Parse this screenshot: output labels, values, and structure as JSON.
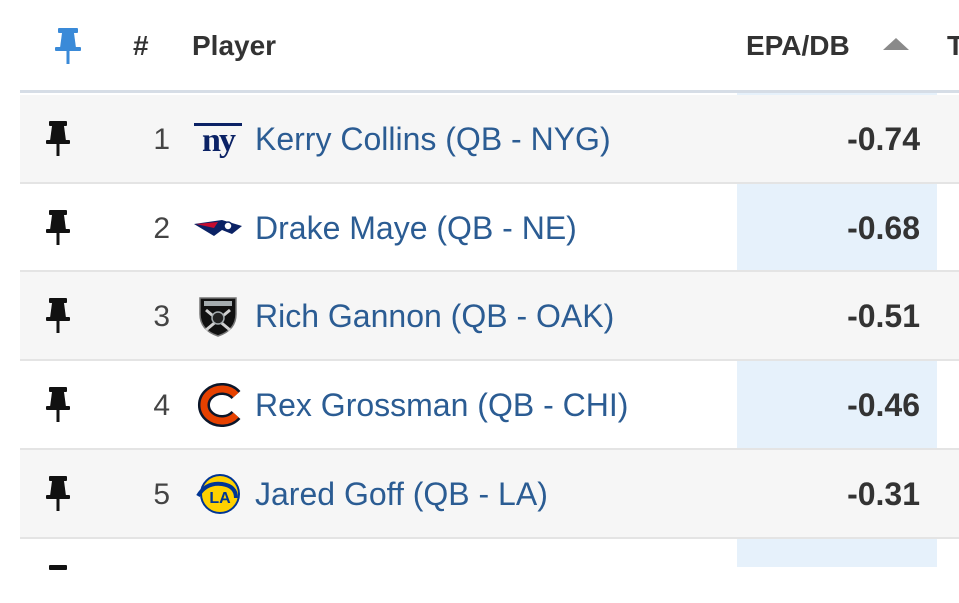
{
  "header": {
    "pin_icon": "pin-icon",
    "rank_label": "#",
    "player_label": "Player",
    "epa_label": "EPA/DB",
    "next_col_label": "T",
    "sort_icon": "sort-ascending-icon",
    "pin_color": "#3a8ad8"
  },
  "rows": [
    {
      "rank": "1",
      "player": "Kerry Collins (QB - NYG)",
      "team_logo": "giants-logo",
      "epa": "-0.74"
    },
    {
      "rank": "2",
      "player": "Drake Maye (QB - NE)",
      "team_logo": "patriots-logo",
      "epa": "-0.68"
    },
    {
      "rank": "3",
      "player": "Rich Gannon (QB - OAK)",
      "team_logo": "raiders-logo",
      "epa": "-0.51"
    },
    {
      "rank": "4",
      "player": "Rex Grossman (QB - CHI)",
      "team_logo": "bears-logo",
      "epa": "-0.46"
    },
    {
      "rank": "5",
      "player": "Jared Goff (QB - LA)",
      "team_logo": "rams-logo",
      "epa": "-0.31"
    }
  ],
  "colors": {
    "link": "#2b5c93",
    "sorted_column_bg": "#e6f1fb",
    "row_stripe": "#f6f6f6"
  }
}
